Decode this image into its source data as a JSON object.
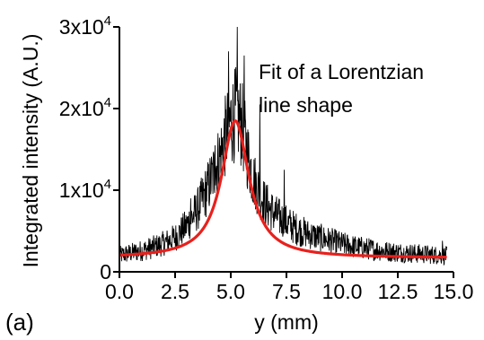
{
  "chart_data": {
    "type": "line",
    "xlabel": "y (mm)",
    "ylabel": "Integrated intensity (A.U.)",
    "xlim": [
      0,
      15
    ],
    "ylim": [
      0,
      30000
    ],
    "x_ticks": [
      0,
      2.5,
      5,
      7.5,
      10,
      12.5,
      15
    ],
    "x_tick_labels": [
      "0.0",
      "2.5",
      "5.0",
      "7.5",
      "10.0",
      "12.5",
      "15.0"
    ],
    "y_ticks": [
      0,
      10000,
      20000,
      30000
    ],
    "y_tick_labels": [
      {
        "mantissa": "0",
        "exp": ""
      },
      {
        "mantissa": "1x10",
        "exp": "4"
      },
      {
        "mantissa": "2x10",
        "exp": "4"
      },
      {
        "mantissa": "3x10",
        "exp": "4"
      }
    ],
    "annotation": [
      "Fit of a Lorentzian",
      "line shape"
    ],
    "panel_label": "(a)",
    "grid": false,
    "series": [
      {
        "style": "noisy-data",
        "color": "#000000",
        "x": [
          0.0,
          0.5,
          1.0,
          1.5,
          2.0,
          2.5,
          3.0,
          3.5,
          4.0,
          4.5,
          4.75,
          5.0,
          5.25,
          5.5,
          5.75,
          6.0,
          6.5,
          7.0,
          7.5,
          8.0,
          8.5,
          9.0,
          9.5,
          10.0,
          10.5,
          11.0,
          11.5,
          12.0,
          12.5,
          13.0,
          13.5,
          14.0,
          14.5,
          14.7
        ],
        "y": [
          2000,
          2300,
          2600,
          3000,
          3500,
          4200,
          5600,
          7600,
          10500,
          14000,
          16500,
          18500,
          19500,
          18000,
          14500,
          11500,
          8500,
          7000,
          6000,
          5200,
          4600,
          4200,
          3800,
          3400,
          3100,
          2900,
          2700,
          2500,
          2400,
          2300,
          2200,
          2100,
          2000,
          2000
        ],
        "spikes": [
          {
            "x": 5.3,
            "y": 30000
          },
          {
            "x": 4.9,
            "y": 27000
          },
          {
            "x": 5.6,
            "y": 26500
          },
          {
            "x": 6.3,
            "y": 20500
          },
          {
            "x": 4.3,
            "y": 15500
          },
          {
            "x": 7.4,
            "y": 12500
          },
          {
            "x": 3.2,
            "y": 9000
          },
          {
            "x": 14.5,
            "y": 3800
          }
        ]
      },
      {
        "name": "Fit of a Lorentzian line shape",
        "style": "fit",
        "color": "#e8201c",
        "model": "lorentzian",
        "center": 5.2,
        "amplitude": 16800,
        "hwhm": 0.75,
        "baseline": 1700,
        "x_range": [
          0,
          14.7
        ]
      }
    ]
  }
}
